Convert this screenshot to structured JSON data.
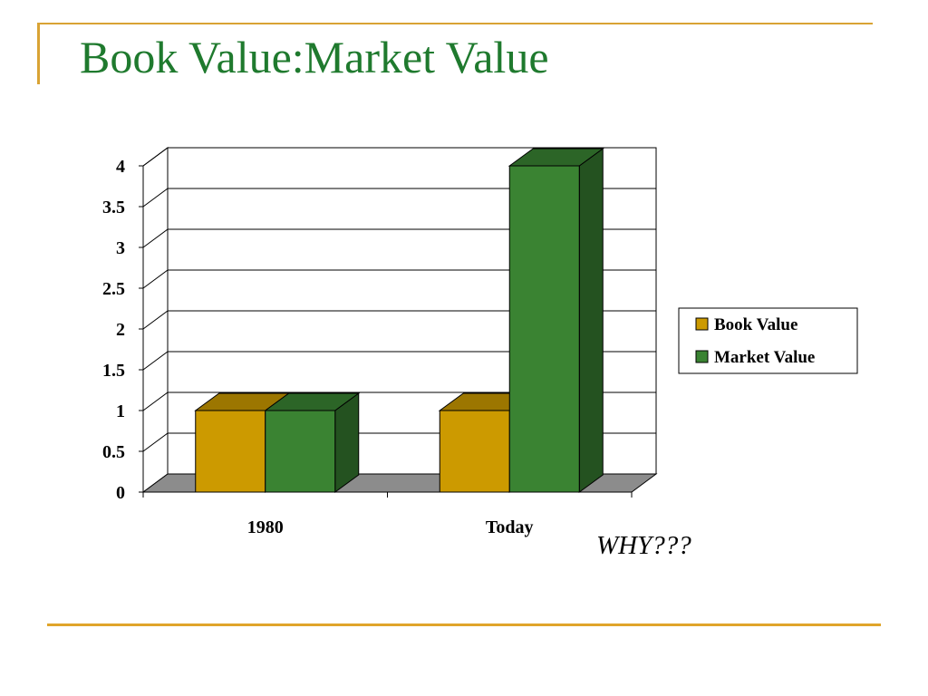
{
  "slide": {
    "title": "Book Value:Market Value",
    "annotation": "WHY???"
  },
  "colors": {
    "accent_line": "#d9a334",
    "title": "#1f7a2e",
    "book_front": "#cc9a00",
    "book_top": "#9c7600",
    "book_side": "#8a6a00",
    "market_front": "#3a8332",
    "market_top": "#2c6527",
    "market_side": "#245220",
    "floor": "#8c8c8c"
  },
  "chart_data": {
    "type": "bar",
    "style": "3d-clustered-column",
    "categories": [
      "1980",
      "Today"
    ],
    "series": [
      {
        "name": "Book Value",
        "values": [
          1,
          1
        ]
      },
      {
        "name": "Market Value",
        "values": [
          1,
          4
        ]
      }
    ],
    "ylim": [
      0,
      4
    ],
    "yticks": [
      0,
      0.5,
      1,
      1.5,
      2,
      2.5,
      3,
      3.5,
      4
    ],
    "ytick_labels": [
      "0",
      "0.5",
      "1",
      "1.5",
      "2",
      "2.5",
      "3",
      "3.5",
      "4"
    ],
    "grid": true,
    "legend_position": "right",
    "title": "",
    "xlabel": "",
    "ylabel": ""
  }
}
